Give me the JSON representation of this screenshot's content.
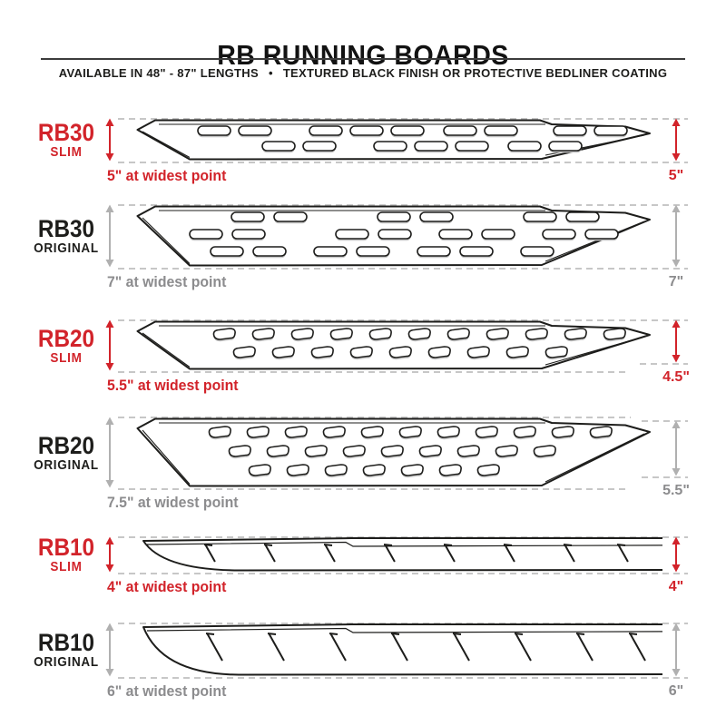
{
  "header": {
    "title": "RB RUNNING BOARDS",
    "subtitle_left": "AVAILABLE IN 48\" - 87\" LENGTHS",
    "subtitle_sep": "•",
    "subtitle_right": "TEXTURED BLACK FINISH OR PROTECTIVE BEDLINER COATING"
  },
  "colors": {
    "accent_red": "#d2232a",
    "gray_arrow": "#b0b0b0",
    "gray_text": "#8c8c8e",
    "ink": "#1d1d1b",
    "dash": "#c7c7c7"
  },
  "sections": [
    {
      "model": "RB30",
      "variant": "SLIM",
      "accent": "red",
      "caption": "5\" at widest point",
      "right_value": "5\"",
      "pattern": "oval-slots",
      "slot_rows": 2
    },
    {
      "model": "RB30",
      "variant": "ORIGINAL",
      "accent": "gray",
      "caption": "7\" at widest point",
      "right_value": "7\"",
      "pattern": "oval-slots",
      "slot_rows": 3
    },
    {
      "model": "RB20",
      "variant": "SLIM",
      "accent": "red",
      "caption": "5.5\" at widest point",
      "right_value": "4.5\"",
      "pattern": "d-slots",
      "slot_rows": 2
    },
    {
      "model": "RB20",
      "variant": "ORIGINAL",
      "accent": "gray",
      "caption": "7.5\" at widest point",
      "right_value": "5.5\"",
      "pattern": "d-slots",
      "slot_rows": 3
    },
    {
      "model": "RB10",
      "variant": "SLIM",
      "accent": "red",
      "caption": "4\" at widest point",
      "right_value": "4\"",
      "pattern": "hash-marks",
      "slot_rows": 1
    },
    {
      "model": "RB10",
      "variant": "ORIGINAL",
      "accent": "gray",
      "caption": "6\" at widest point",
      "right_value": "6\"",
      "pattern": "hash-marks",
      "slot_rows": 1
    }
  ]
}
